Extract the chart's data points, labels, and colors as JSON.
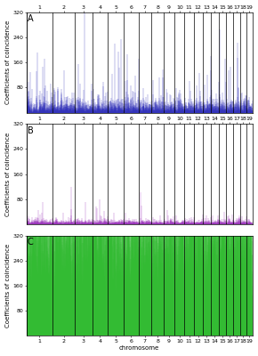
{
  "panels": [
    "A",
    "B",
    "C"
  ],
  "n_chromosomes": 19,
  "chr_labels": [
    "1",
    "2",
    "3",
    "4",
    "5",
    "6",
    "7",
    "8",
    "9",
    "10",
    "11",
    "12",
    "13",
    "14",
    "15",
    "16",
    "17",
    "18",
    "19"
  ],
  "ylim": [
    0,
    320
  ],
  "yticks": [
    80,
    160,
    240,
    320
  ],
  "ylabel": "Coefficients of coincidence",
  "xlabel": "chromosome",
  "colors": [
    "#3333bb",
    "#9933bb",
    "#33bb33"
  ],
  "background": "#ffffff",
  "panel_label_fontsize": 7,
  "axis_label_fontsize": 5,
  "tick_fontsize": 4.5,
  "chr_sizes": [
    120,
    100,
    80,
    70,
    75,
    65,
    60,
    55,
    50,
    45,
    42,
    40,
    38,
    36,
    34,
    32,
    30,
    29,
    28
  ],
  "seed_A": 42,
  "seed_B": 123,
  "seed_C": 7
}
